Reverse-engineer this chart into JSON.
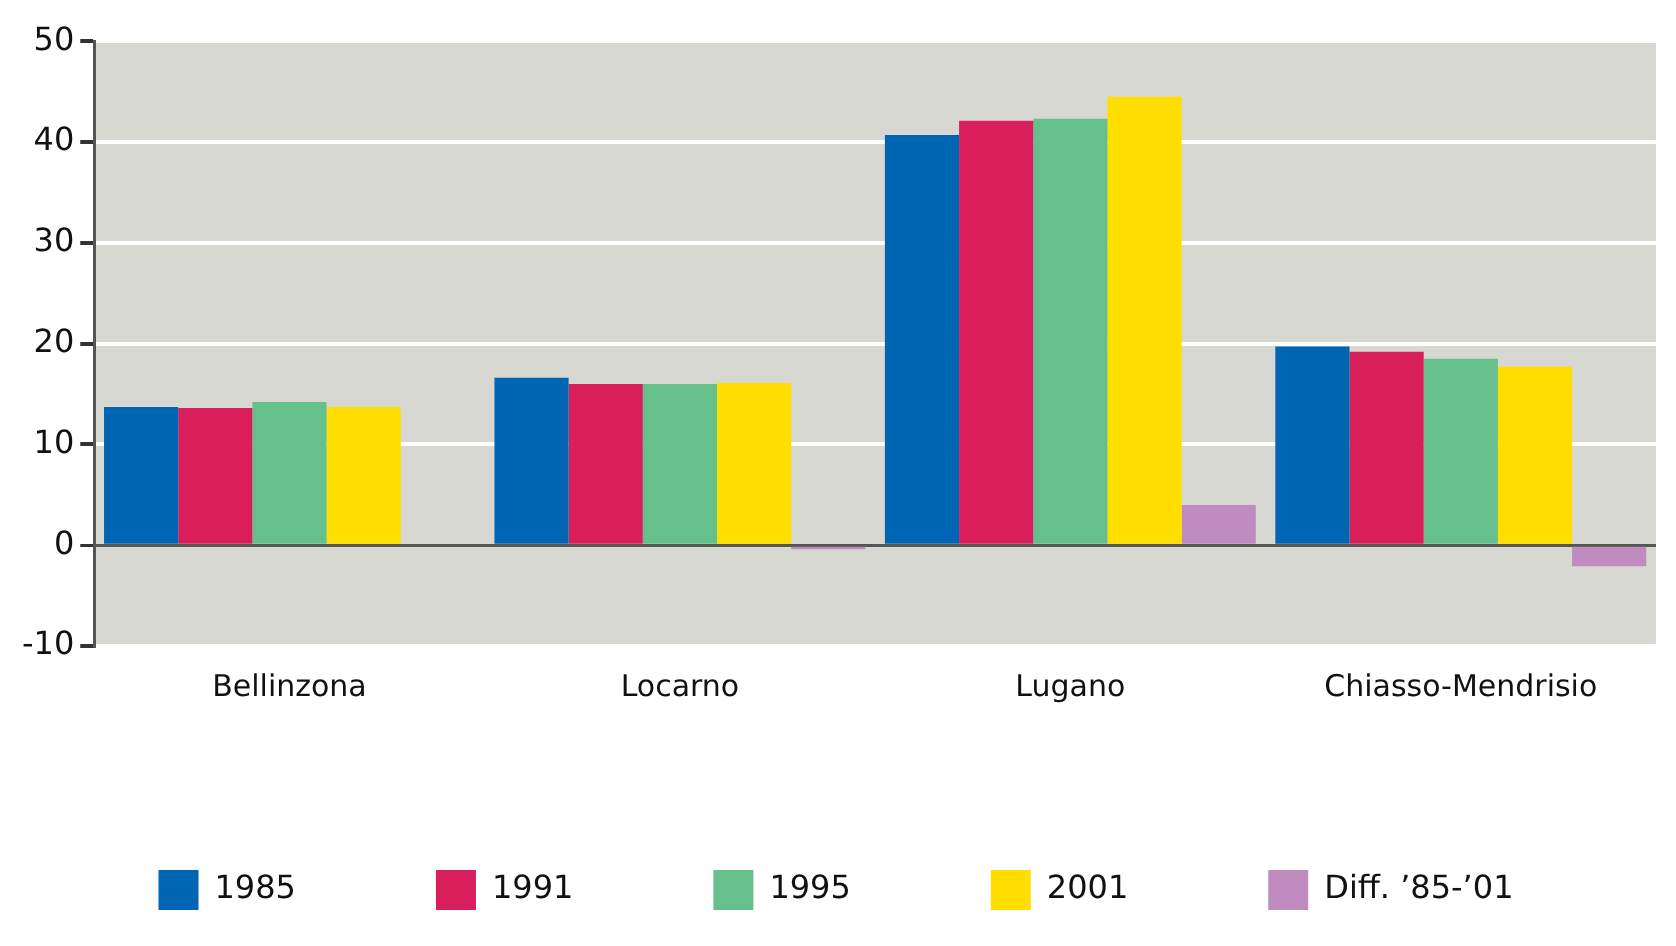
{
  "chart_data": {
    "type": "bar",
    "categories": [
      "Bellinzona",
      "Locarno",
      "Lugano",
      "Chiasso-Mendrisio"
    ],
    "series": [
      {
        "name": "1985",
        "color": "#0066b3",
        "values": [
          13.7,
          16.6,
          40.7,
          19.7
        ]
      },
      {
        "name": "1991",
        "color": "#d81e5b",
        "values": [
          13.6,
          16.0,
          42.1,
          19.2
        ]
      },
      {
        "name": "1995",
        "color": "#66c08c",
        "values": [
          14.2,
          16.0,
          42.3,
          18.5
        ]
      },
      {
        "name": "2001",
        "color": "#ffde00",
        "values": [
          13.7,
          16.1,
          44.5,
          17.7
        ]
      },
      {
        "name": "Diff. ’85-’01",
        "color": "#c08cc0",
        "values": [
          0,
          -0.4,
          4.0,
          -2.1
        ]
      }
    ],
    "ylim": [
      -10,
      50
    ],
    "yticks": [
      -10,
      0,
      10,
      20,
      30,
      40,
      50
    ],
    "grid": "y",
    "legend": "bottom"
  }
}
